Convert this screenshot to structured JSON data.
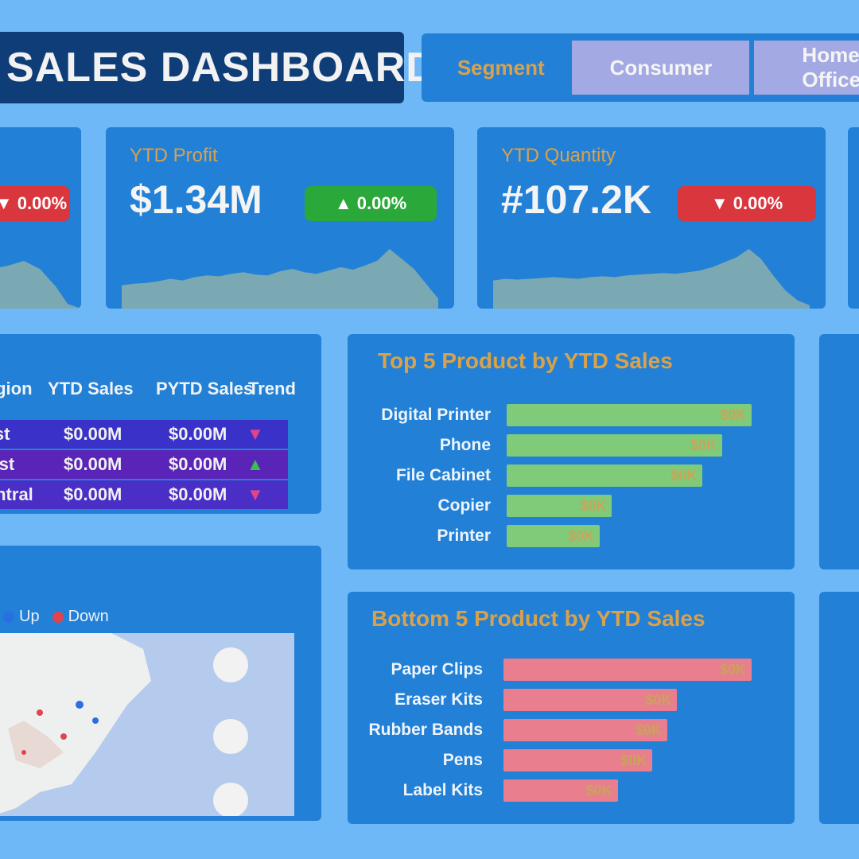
{
  "header": {
    "title": "SALES DASHBOARD",
    "filter_label": "Segment",
    "filter_options": [
      "Consumer",
      "Home Office"
    ]
  },
  "kpis": [
    {
      "title": "YTD Profit",
      "value": "$1.34M",
      "change": "▲ 0.00%",
      "trend": "up",
      "sparkline": [
        28,
        30,
        31,
        33,
        36,
        34,
        38,
        40,
        39,
        42,
        44,
        41,
        40,
        45,
        48,
        44,
        42,
        46,
        50,
        47,
        52,
        58,
        72,
        60,
        48,
        30,
        12
      ]
    },
    {
      "title": "YTD Quantity",
      "value": "#107.2K",
      "change": "▼ 0.00%",
      "trend": "down",
      "sparkline": [
        34,
        36,
        35,
        36,
        37,
        38,
        37,
        36,
        38,
        39,
        38,
        40,
        41,
        42,
        43,
        42,
        44,
        46,
        50,
        56,
        62,
        72,
        60,
        40,
        22,
        10,
        4
      ]
    }
  ],
  "partial_kpi": {
    "change": "▼ 0.00%",
    "trend": "down"
  },
  "region_table": {
    "headers": [
      "Region",
      "YTD Sales",
      "PYTD Sales",
      "Trend"
    ],
    "rows": [
      {
        "region": "East",
        "ytd": "$0.00M",
        "pytd": "$0.00M",
        "trend": "down",
        "color": "#3a32c8"
      },
      {
        "region": "West",
        "ytd": "$0.00M",
        "pytd": "$0.00M",
        "trend": "up",
        "color": "#5b24b8"
      },
      {
        "region": "Central",
        "ytd": "$0.00M",
        "pytd": "$0.00M",
        "trend": "down",
        "color": "#4a2ec6"
      }
    ]
  },
  "top_products": {
    "title": "Top 5 Product by YTD Sales",
    "items": [
      {
        "name": "Digital Printer",
        "value": 100,
        "label": "$0K"
      },
      {
        "name": "Phone",
        "value": 88,
        "label": "$0K"
      },
      {
        "name": "File Cabinet",
        "value": 80,
        "label": "$0K"
      },
      {
        "name": "Copier",
        "value": 43,
        "label": "$0K"
      },
      {
        "name": "Printer",
        "value": 38,
        "label": "$0K"
      }
    ],
    "color": "#7fcb7a"
  },
  "bottom_products": {
    "title": "Bottom 5 Product by YTD Sales",
    "items": [
      {
        "name": "Paper Clips",
        "value": 100,
        "label": "$0K"
      },
      {
        "name": "Eraser Kits",
        "value": 70,
        "label": "$0K"
      },
      {
        "name": "Rubber Bands",
        "value": 66,
        "label": "$0K"
      },
      {
        "name": "Pens",
        "value": 60,
        "label": "$0K"
      },
      {
        "name": "Label Kits",
        "value": 46,
        "label": "$0K"
      }
    ],
    "color": "#e87e8e"
  },
  "map": {
    "legend": [
      {
        "label": "Up",
        "color": "#2a6fe0"
      },
      {
        "label": "Down",
        "color": "#e0444f"
      }
    ]
  },
  "colors": {
    "background": "#6fb8f7",
    "panel": "#2280d6",
    "accent": "#d9a24a",
    "title_bg": "#0f3d78",
    "sparkline_fill": "#7aa8b3"
  }
}
